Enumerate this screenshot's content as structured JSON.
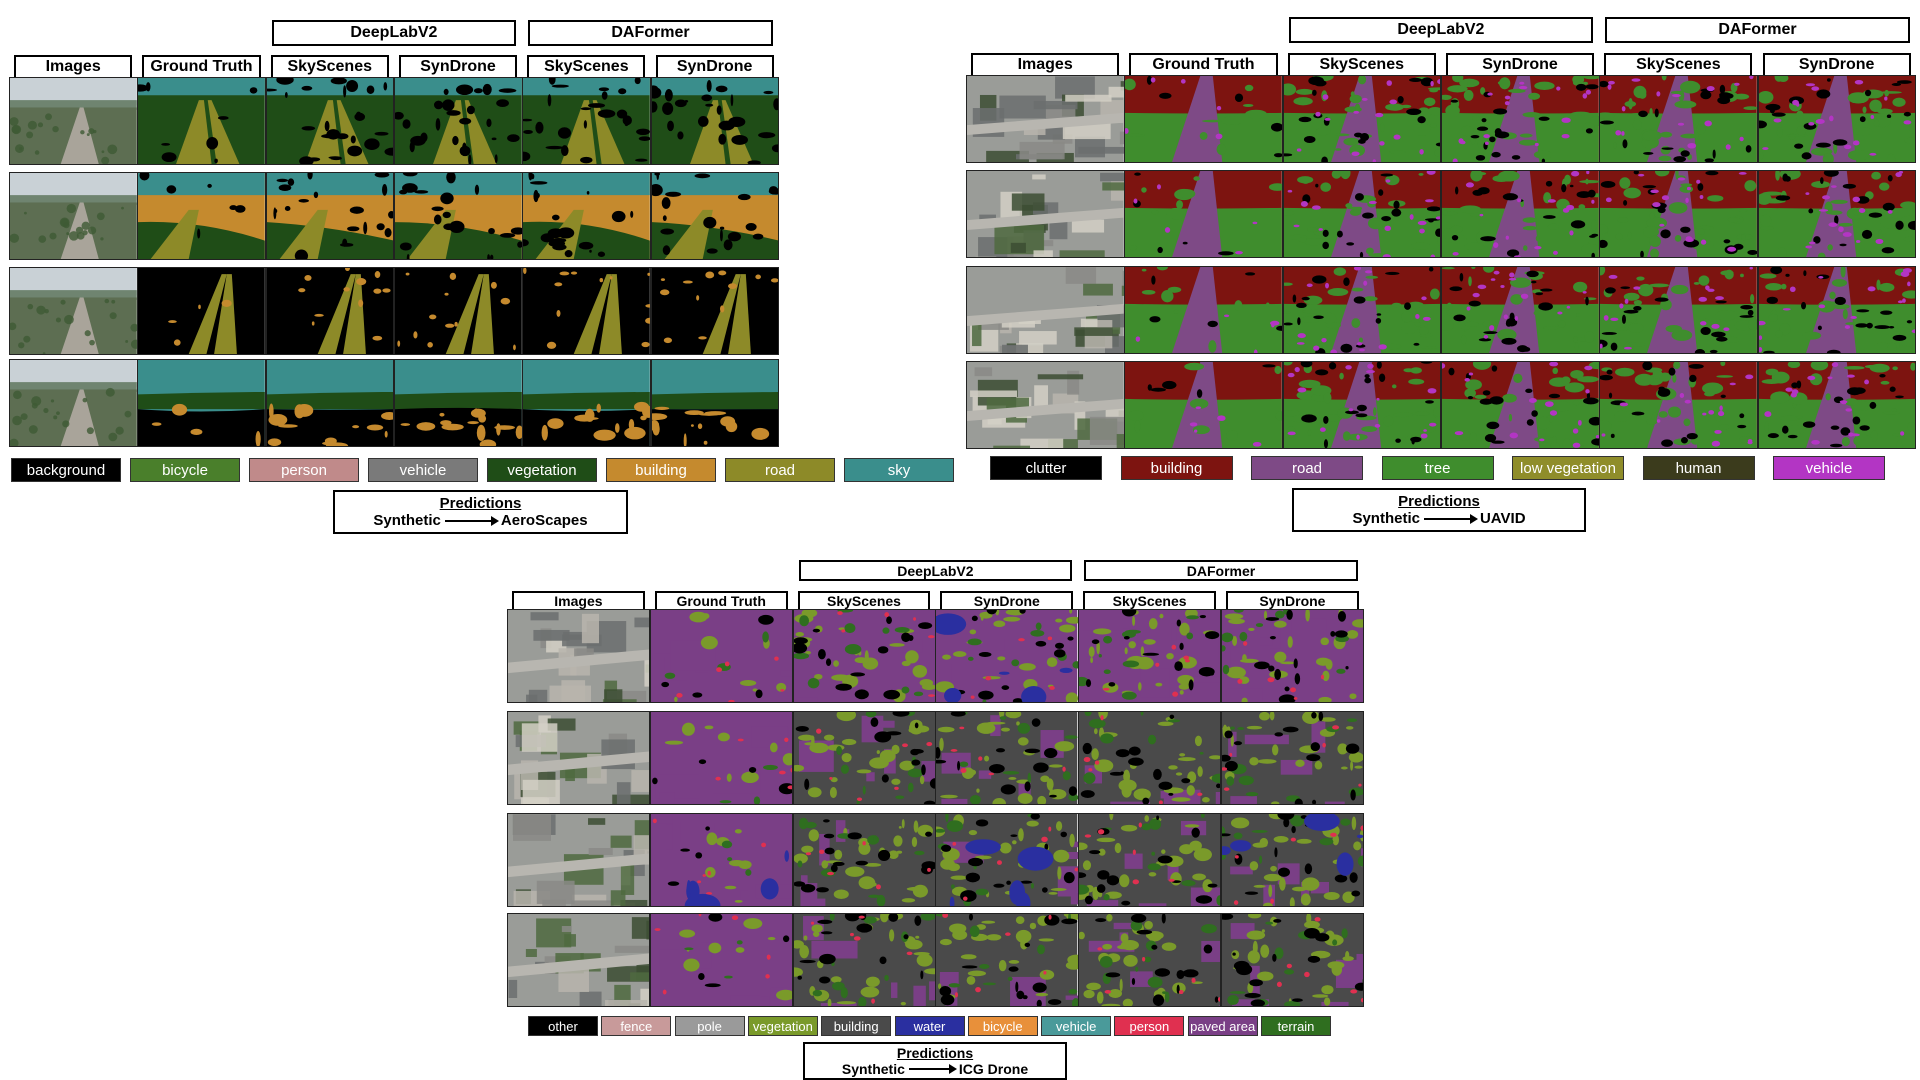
{
  "panels": [
    {
      "id": "aeroscapes",
      "model_headers": [
        "DeepLabV2",
        "DAFormer"
      ],
      "column_headers": [
        "Images",
        "Ground Truth",
        "SkyScenes",
        "SynDrone",
        "SkyScenes",
        "SynDrone"
      ],
      "prediction_title": "Predictions",
      "prediction_source": "Synthetic",
      "prediction_target": "AeroScapes",
      "legend": [
        {
          "label": "background",
          "color": "#000000",
          "text_color": "#ffffff"
        },
        {
          "label": "bicycle",
          "color": "#4a7f2b",
          "text_color": "#ffffff"
        },
        {
          "label": "person",
          "color": "#c08a8a",
          "text_color": "#ffffff"
        },
        {
          "label": "vehicle",
          "color": "#7a7a7a",
          "text_color": "#ffffff"
        },
        {
          "label": "vegetation",
          "color": "#1f4d17",
          "text_color": "#ffffff"
        },
        {
          "label": "building",
          "color": "#c58a2e",
          "text_color": "#ffffff"
        },
        {
          "label": "road",
          "color": "#8d8a28",
          "text_color": "#ffffff"
        },
        {
          "label": "sky",
          "color": "#3a8e8c",
          "text_color": "#ffffff"
        }
      ]
    },
    {
      "id": "uavid",
      "model_headers": [
        "DeepLabV2",
        "DAFormer"
      ],
      "column_headers": [
        "Images",
        "Ground Truth",
        "SkyScenes",
        "SynDrone",
        "SkyScenes",
        "SynDrone"
      ],
      "prediction_title": "Predictions",
      "prediction_source": "Synthetic",
      "prediction_target": "UAVID",
      "legend": [
        {
          "label": "clutter",
          "color": "#000000",
          "text_color": "#ffffff"
        },
        {
          "label": "building",
          "color": "#7d1410",
          "text_color": "#ffffff"
        },
        {
          "label": "road",
          "color": "#7e4a86",
          "text_color": "#ffffff"
        },
        {
          "label": "tree",
          "color": "#3f8d2d",
          "text_color": "#ffffff"
        },
        {
          "label": "low vegetation",
          "color": "#8f8d2a",
          "text_color": "#ffffff"
        },
        {
          "label": "human",
          "color": "#3b3b1c",
          "text_color": "#ffffff"
        },
        {
          "label": "vehicle",
          "color": "#b335c4",
          "text_color": "#ffffff"
        }
      ]
    },
    {
      "id": "icgdrone",
      "model_headers": [
        "DeepLabV2",
        "DAFormer"
      ],
      "column_headers": [
        "Images",
        "Ground Truth",
        "SkyScenes",
        "SynDrone",
        "SkyScenes",
        "SynDrone"
      ],
      "prediction_title": "Predictions",
      "prediction_source": "Synthetic",
      "prediction_target": "ICG Drone",
      "legend": [
        {
          "label": "other",
          "color": "#000000",
          "text_color": "#ffffff"
        },
        {
          "label": "fence",
          "color": "#c89a9a",
          "text_color": "#ffffff"
        },
        {
          "label": "pole",
          "color": "#9a9a9a",
          "text_color": "#ffffff"
        },
        {
          "label": "vegetation",
          "color": "#7a9a2a",
          "text_color": "#ffffff"
        },
        {
          "label": "building",
          "color": "#4a4a4a",
          "text_color": "#ffffff"
        },
        {
          "label": "water",
          "color": "#2a2fa0",
          "text_color": "#ffffff"
        },
        {
          "label": "bicycle",
          "color": "#e8903a",
          "text_color": "#ffffff"
        },
        {
          "label": "vehicle",
          "color": "#4a9a9a",
          "text_color": "#ffffff"
        },
        {
          "label": "person",
          "color": "#e03050",
          "text_color": "#ffffff"
        },
        {
          "label": "paved area",
          "color": "#7a3f86",
          "text_color": "#ffffff"
        },
        {
          "label": "terrain",
          "color": "#2f6e1f",
          "text_color": "#ffffff"
        }
      ]
    }
  ]
}
